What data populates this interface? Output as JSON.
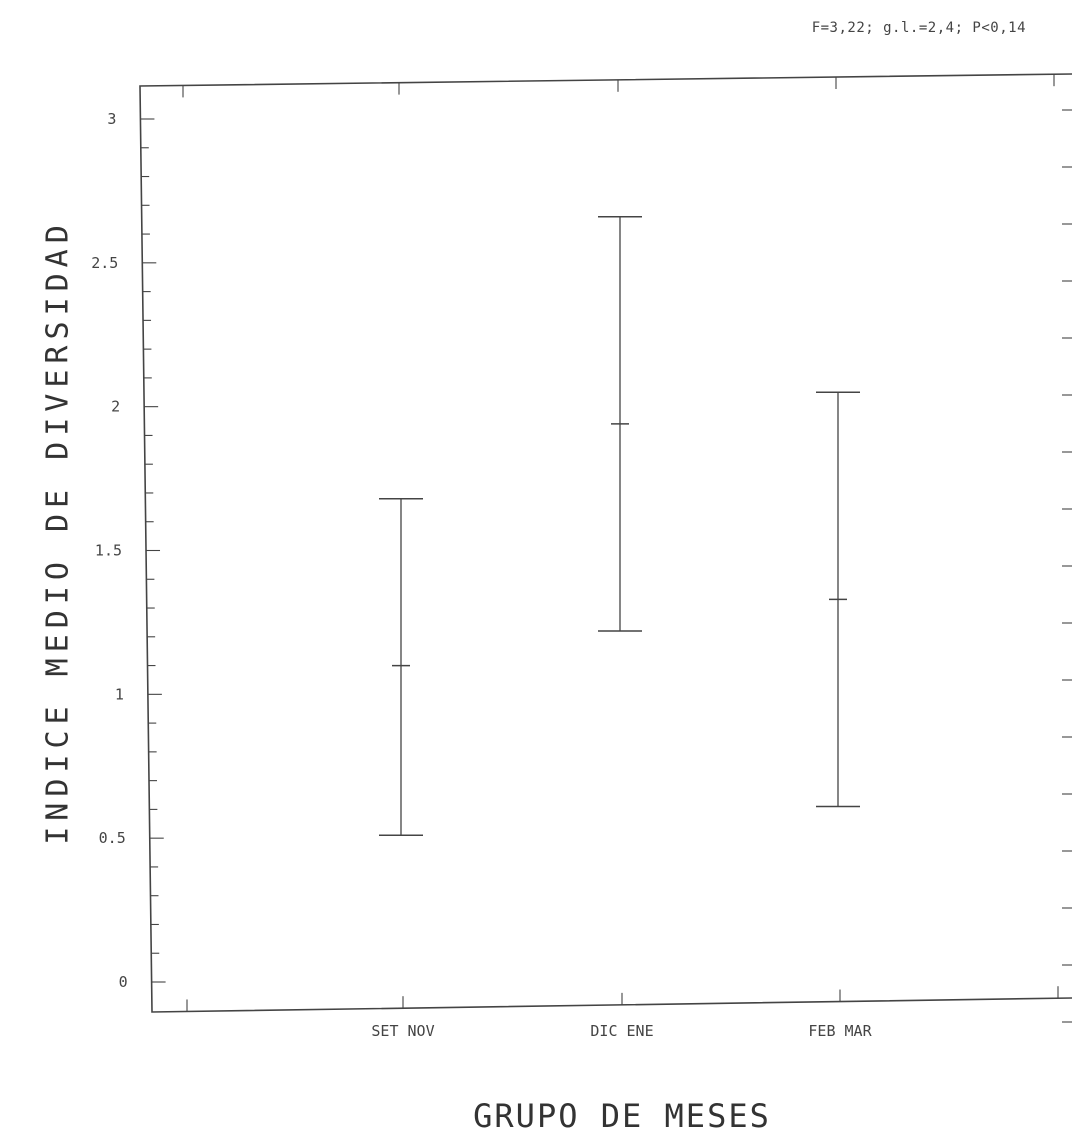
{
  "chart_data": {
    "type": "errorbar",
    "annotation": "F=3,22; g.l.=2,4; P<0,14",
    "ylabel": "INDICE MEDIO DE DIVERSIDAD",
    "xlabel": "GRUPO DE MESES",
    "ylim": [
      0,
      3
    ],
    "yticks": [
      "0",
      "0.5",
      "1",
      "1.5",
      "2",
      "2.5",
      "3"
    ],
    "categories": [
      "SET NOV",
      "DIC ENE",
      "FEB MAR"
    ],
    "mean": [
      1.1,
      1.94,
      1.33
    ],
    "upper": [
      1.68,
      2.66,
      2.05
    ],
    "lower": [
      0.51,
      1.22,
      0.61
    ],
    "grid": false,
    "colors": {
      "ink": "#444444"
    }
  }
}
